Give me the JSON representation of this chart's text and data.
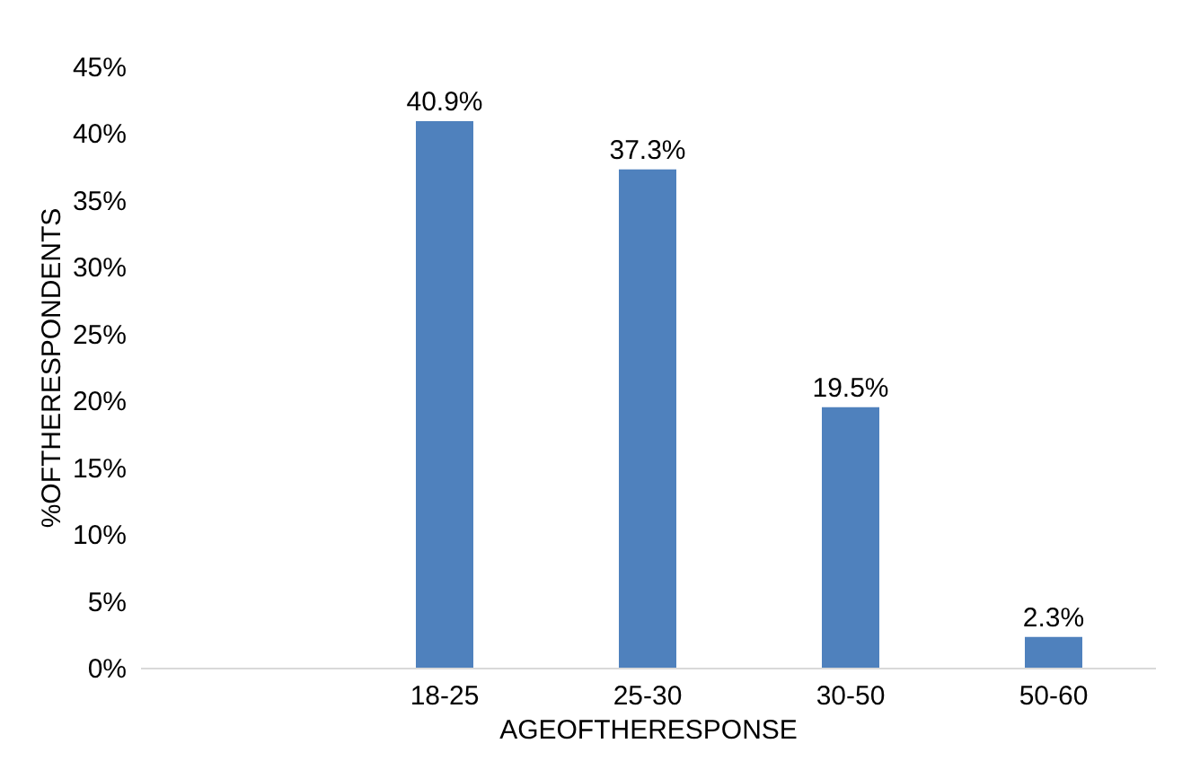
{
  "chart_data": {
    "type": "bar",
    "xlabel": "AGEOFTHERESPONSE",
    "ylabel": "%OFTHERESPONDENTS",
    "categories": [
      null,
      "18-25",
      "25-30",
      "30-50",
      "50-60"
    ],
    "values": [
      null,
      40.9,
      37.3,
      19.5,
      2.3
    ],
    "value_labels": [
      null,
      "40.9%",
      "37.3%",
      "19.5%",
      "2.3%"
    ],
    "color": "#4f81bd",
    "ylim": [
      0,
      45
    ],
    "yticks": [
      {
        "value": 0,
        "label": "0%"
      },
      {
        "value": 5,
        "label": "5%"
      },
      {
        "value": 10,
        "label": "10%"
      },
      {
        "value": 15,
        "label": "15%"
      },
      {
        "value": 20,
        "label": "20%"
      },
      {
        "value": 25,
        "label": "25%"
      },
      {
        "value": 30,
        "label": "30%"
      },
      {
        "value": 35,
        "label": "35%"
      },
      {
        "value": 40,
        "label": "40%"
      },
      {
        "value": 45,
        "label": "45%"
      }
    ],
    "grid": false
  }
}
